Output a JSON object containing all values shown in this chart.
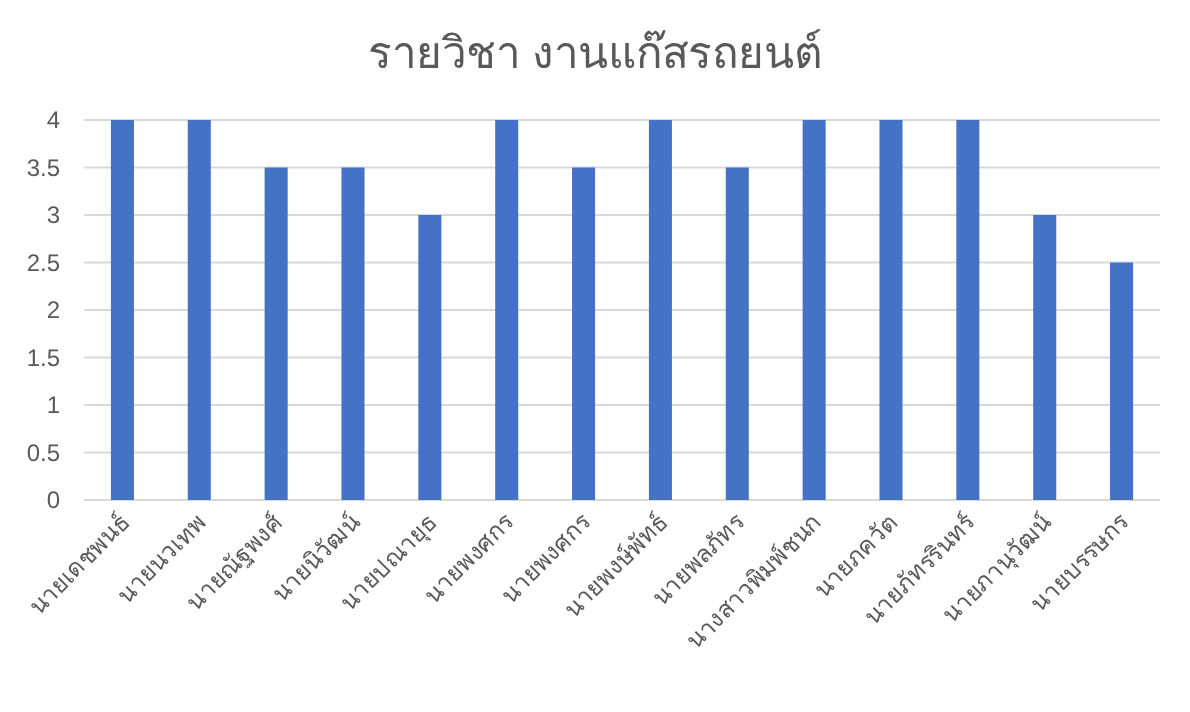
{
  "chart_data": {
    "type": "bar",
    "title": "รายวิชา งานแก๊สรถยนต์",
    "categories": [
      "นายเดชพนธ์",
      "นายนวเทพ",
      "นายณัฐพงศ์",
      "นายนิวัฒน์",
      "นายปณายุธ",
      "นายพงศกร",
      "นายพงศกร",
      "นายพงษ์พัทธ์",
      "นายพลภัทร",
      "นางสาวพิมพ์ชนก",
      "นายภควัต",
      "นายภัทรรินทร์",
      "นายภานุวัฒน์",
      "นายบรรษกร"
    ],
    "values": [
      4,
      4,
      3.5,
      3.5,
      3,
      4,
      3.5,
      4,
      3.5,
      4,
      4,
      4,
      3,
      2.5
    ],
    "color": "#4472c4",
    "ylim": [
      0,
      4
    ],
    "yticks": [
      0,
      0.5,
      1,
      1.5,
      2,
      2.5,
      3,
      3.5,
      4
    ],
    "grid": "y"
  }
}
